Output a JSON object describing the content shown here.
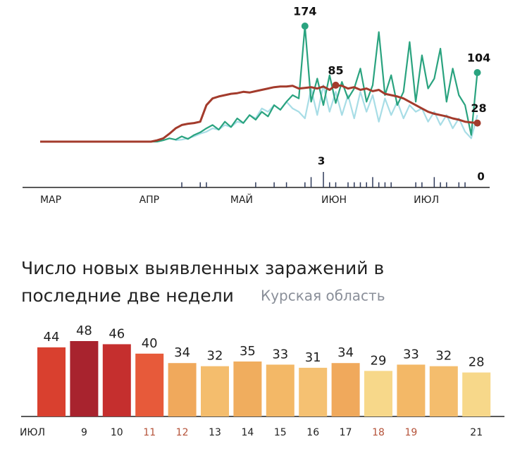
{
  "chart_data": [
    {
      "type": "line",
      "categories": [
        "МАР",
        null,
        null,
        null,
        null,
        null,
        null,
        null,
        null,
        null,
        null,
        null,
        null,
        null,
        null,
        null,
        "АПР",
        null,
        null,
        null,
        null,
        null,
        null,
        null,
        null,
        null,
        null,
        null,
        null,
        null,
        null,
        "МАЙ",
        null,
        null,
        null,
        null,
        null,
        null,
        null,
        null,
        null,
        null,
        null,
        null,
        null,
        null,
        "ИЮН",
        null,
        null,
        null,
        null,
        null,
        null,
        null,
        null,
        null,
        null,
        null,
        null,
        null,
        null,
        "ИЮЛ",
        null,
        null,
        null,
        null,
        null,
        null,
        null,
        null,
        null,
        null
      ],
      "series": [
        {
          "color": "#2aa37f",
          "values": [
            0,
            0,
            0,
            0,
            0,
            0,
            0,
            0,
            0,
            0,
            0,
            0,
            0,
            0,
            0,
            0,
            0,
            0,
            0,
            0,
            2,
            5,
            3,
            8,
            4,
            10,
            14,
            20,
            25,
            18,
            30,
            22,
            35,
            28,
            40,
            33,
            45,
            38,
            55,
            48,
            60,
            70,
            65,
            174,
            60,
            95,
            55,
            100,
            58,
            90,
            65,
            80,
            110,
            60,
            85,
            165,
            70,
            100,
            55,
            75,
            150,
            60,
            130,
            80,
            95,
            140,
            60,
            110,
            70,
            55,
            10,
            104
          ]
        },
        {
          "color": "#a8dde6",
          "values": [
            null,
            null,
            null,
            null,
            null,
            null,
            null,
            null,
            null,
            null,
            null,
            null,
            null,
            null,
            null,
            null,
            null,
            null,
            null,
            null,
            null,
            null,
            2,
            3,
            5,
            8,
            12,
            15,
            20,
            18,
            25,
            22,
            30,
            28,
            40,
            35,
            50,
            45,
            55,
            48,
            60,
            50,
            45,
            35,
            80,
            40,
            85,
            45,
            75,
            40,
            70,
            35,
            75,
            45,
            70,
            30,
            65,
            40,
            60,
            35,
            55,
            45,
            50,
            30,
            45,
            25,
            40,
            20,
            35,
            15,
            5,
            40
          ]
        },
        {
          "color": "#a33b2c",
          "values": [
            0,
            0,
            0,
            0,
            0,
            0,
            0,
            0,
            0,
            0,
            0,
            0,
            0,
            0,
            0,
            0,
            0,
            0,
            0,
            2,
            5,
            12,
            20,
            25,
            27,
            28,
            30,
            55,
            65,
            68,
            70,
            72,
            73,
            75,
            74,
            76,
            78,
            80,
            82,
            83,
            83,
            84,
            80,
            81,
            82,
            80,
            83,
            78,
            85,
            84,
            80,
            82,
            78,
            80,
            76,
            78,
            72,
            70,
            68,
            65,
            60,
            55,
            50,
            45,
            42,
            40,
            38,
            35,
            33,
            30,
            29,
            28
          ]
        },
        {
          "color": "#2f3a5a",
          "axis": "y2",
          "values": [
            0,
            0,
            0,
            0,
            0,
            0,
            0,
            0,
            0,
            0,
            0,
            0,
            0,
            0,
            0,
            0,
            0,
            0,
            0,
            0,
            0,
            0,
            0,
            1,
            0,
            0,
            1,
            1,
            0,
            0,
            0,
            0,
            0,
            0,
            0,
            1,
            0,
            0,
            1,
            0,
            1,
            0,
            0,
            1,
            2,
            0,
            3,
            1,
            1,
            0,
            1,
            1,
            1,
            1,
            2,
            1,
            1,
            1,
            0,
            0,
            0,
            1,
            1,
            0,
            2,
            1,
            1,
            0,
            1,
            1,
            0,
            0
          ]
        }
      ]
    },
    {
      "type": "bar",
      "title": "Число новых выявленных заражений в последние две недели",
      "subtitle": "Курская область",
      "categories": [
        "ИЮЛ",
        "9",
        "10",
        "11",
        "12",
        "13",
        "14",
        "15",
        "16",
        "17",
        "18",
        "19",
        null,
        "21"
      ],
      "values": [
        44,
        48,
        46,
        40,
        34,
        32,
        35,
        33,
        31,
        34,
        29,
        33,
        32,
        28
      ],
      "colors": [
        "#d9402f",
        "#a8232e",
        "#c52f2e",
        "#e75a3a",
        "#f0a95c",
        "#f4bd6d",
        "#f0ad5e",
        "#f3b867",
        "#f5c172",
        "#f0a95c",
        "#f7d88a",
        "#f3b867",
        "#f4bd6d",
        "#f7d88a"
      ],
      "category_colors": [
        "#222",
        "#222",
        "#222",
        "#b5533a",
        "#b5533a",
        "#222",
        "#222",
        "#222",
        "#222",
        "#222",
        "#b5533a",
        "#b5533a",
        "#222",
        "#222"
      ]
    }
  ]
}
